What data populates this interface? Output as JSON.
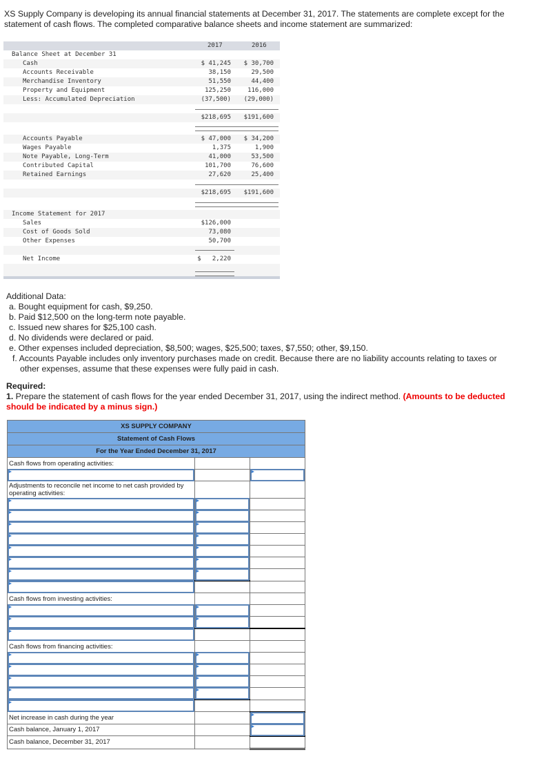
{
  "intro": "XS Supply Company is developing its annual financial statements at December 31, 2017. The statements are complete except for the statement of cash flows. The completed comparative balance sheets and income statement are summarized:",
  "financials": {
    "col_headers": [
      "2017",
      "2016"
    ],
    "balance_sheet_title": "Balance Sheet at December 31",
    "assets": [
      {
        "label": "Cash",
        "y2017": "$ 41,245",
        "y2016": "$ 30,700"
      },
      {
        "label": "Accounts Receivable",
        "y2017": "38,150",
        "y2016": "29,500"
      },
      {
        "label": "Merchandise Inventory",
        "y2017": "51,550",
        "y2016": "44,400"
      },
      {
        "label": "Property and Equipment",
        "y2017": "125,250",
        "y2016": "116,000"
      },
      {
        "label": "Less: Accumulated Depreciation",
        "y2017": "(37,500)",
        "y2016": "(29,000)"
      }
    ],
    "assets_total": {
      "y2017": "$218,695",
      "y2016": "$191,600"
    },
    "liabilities": [
      {
        "label": "Accounts Payable",
        "y2017": "$ 47,000",
        "y2016": "$ 34,200"
      },
      {
        "label": "Wages Payable",
        "y2017": "1,375",
        "y2016": "1,900"
      },
      {
        "label": "Note Payable, Long-Term",
        "y2017": "41,000",
        "y2016": "53,500"
      },
      {
        "label": "Contributed Capital",
        "y2017": "101,700",
        "y2016": "76,600"
      },
      {
        "label": "Retained Earnings",
        "y2017": "27,620",
        "y2016": "25,400"
      }
    ],
    "liabilities_total": {
      "y2017": "$218,695",
      "y2016": "$191,600"
    },
    "income_title": "Income Statement for 2017",
    "income": [
      {
        "label": "Sales",
        "y2017": "$126,000"
      },
      {
        "label": "Cost of Goods Sold",
        "y2017": "73,080"
      },
      {
        "label": "Other Expenses",
        "y2017": "50,700"
      }
    ],
    "net_income": {
      "label": "Net Income",
      "y2017": "$   2,220"
    }
  },
  "additional": {
    "title": "Additional Data:",
    "items": [
      "a. Bought equipment for cash, $9,250.",
      "b. Paid $12,500 on the long-term note payable.",
      "c. Issued new shares for $25,100 cash.",
      "d. No dividends were declared or paid.",
      "e. Other expenses included depreciation, $8,500; wages, $25,500; taxes, $7,550; other, $9,150.",
      "f. Accounts Payable includes only inventory purchases made on credit. Because there are no liability accounts relating to taxes or",
      "other expenses, assume that these expenses were fully paid in cash."
    ],
    "required_title": "Required:",
    "required_num": "1.",
    "required_text": " Prepare the statement of cash flows for the year ended December 31, 2017, using the indirect method. ",
    "required_note": "(Amounts to be deducted should be indicated by a minus sign.)"
  },
  "cashflow": {
    "company": "XS SUPPLY COMPANY",
    "statement": "Statement of Cash Flows",
    "period": "For the Year Ended December 31, 2017",
    "operating_label": "Cash flows from operating activities:",
    "adjustments_label": "Adjustments to reconcile net income to net cash provided by operating activities:",
    "investing_label": "Cash flows from investing activities:",
    "financing_label": "Cash flows from financing activities:",
    "net_increase_label": "Net increase in cash during the year",
    "cash_jan_label": "Cash balance, January 1, 2017",
    "cash_dec_label": "Cash balance, December 31, 2017",
    "accent_color": "#77aae3"
  }
}
